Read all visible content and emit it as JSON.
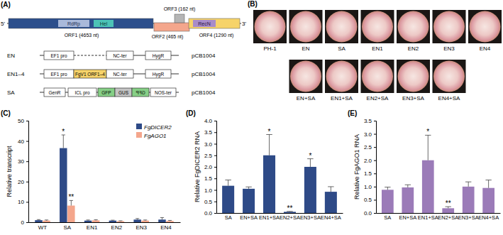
{
  "panel_labels": [
    "(A)",
    "(B)",
    "(C)",
    "(D)",
    "(E)"
  ],
  "diagram": {
    "genome": {
      "five_prime": "5'",
      "three_prime": "3'",
      "orfs": [
        "ORF1 (4653 nt)",
        "ORF2 (465 nt)",
        "ORF3 (162 nt)",
        "ORF4 (1290 nt)"
      ],
      "domains": [
        "RdRp",
        "Hel",
        "RecN"
      ]
    },
    "constructs": [
      {
        "name": "EN",
        "parts": [
          "EF1 pro",
          "NC-ter",
          "HygR"
        ],
        "vector": "pCB1004"
      },
      {
        "name": "EN1–4",
        "parts": [
          "EF1 pro",
          "FgV1 ORF1–4",
          "NC-ter",
          "HygR"
        ],
        "vector": "pCB1004"
      },
      {
        "name": "SA",
        "parts": [
          "GenR",
          "ICL pro",
          "GFP",
          "GUS",
          "GFP",
          "NOS-ter"
        ],
        "vector": "pCB1004"
      }
    ]
  },
  "photos": {
    "rows": [
      [
        "PH-1",
        "EN",
        "SA",
        "EN1",
        "EN2",
        "EN3",
        "EN4"
      ],
      [
        "EN+SA",
        "EN1+SA",
        "EN2+SA",
        "EN3+SA",
        "EN4+SA"
      ]
    ]
  },
  "chart_data": [
    {
      "type": "bar",
      "categories": [
        "WT",
        "SA",
        "EN1",
        "EN2",
        "EN3",
        "EN4"
      ],
      "ylabel": "Relative transcript",
      "ylim": [
        0,
        50
      ],
      "yticks": [
        0,
        10,
        20,
        30,
        40,
        50
      ],
      "legend": "upper right",
      "series": [
        {
          "name": "FgDICER2",
          "color": "#2e4a87",
          "values": [
            1.0,
            36.5,
            0.8,
            0.8,
            1.3,
            1.3
          ],
          "errors": [
            0.3,
            6.5,
            0.3,
            0.2,
            0.5,
            1.0
          ],
          "annotations": [
            null,
            "*",
            null,
            null,
            null,
            null
          ]
        },
        {
          "name": "FgAGO1",
          "color": "#f4a68c",
          "values": [
            0.8,
            8.2,
            0.9,
            0.5,
            0.8,
            0.6
          ],
          "errors": [
            0.3,
            2.5,
            0.3,
            0.2,
            0.3,
            0.3
          ],
          "annotations": [
            null,
            "**",
            null,
            null,
            null,
            null
          ]
        }
      ]
    },
    {
      "type": "bar",
      "categories": [
        "SA",
        "EN+SA",
        "EN1+SA",
        "EN2+SA",
        "EN3+SA",
        "EN4+SA"
      ],
      "ylabel": "Relative FgDICER2 RNA",
      "ylim": [
        0,
        4
      ],
      "yticks": [
        {
          "value": 0,
          "label": "0.0"
        },
        {
          "value": 0.5,
          "label": "0.5"
        },
        {
          "value": 1,
          "label": "1.0"
        },
        {
          "value": 1.5,
          "label": "1.5"
        },
        {
          "value": 2,
          "label": "2.0"
        },
        {
          "value": 2.5,
          "label": "2.5"
        },
        {
          "value": 3,
          "label": "3.0"
        },
        {
          "value": 3.5,
          "label": "3.5"
        },
        {
          "value": 4,
          "label": "4.0"
        }
      ],
      "color": "#2e4a87",
      "values": [
        1.18,
        1.05,
        2.5,
        0.05,
        2.0,
        0.92
      ],
      "errors": [
        0.25,
        0.08,
        0.9,
        0.02,
        0.35,
        0.22
      ],
      "annotations": [
        null,
        null,
        "*",
        "**",
        "*",
        null
      ]
    },
    {
      "type": "bar",
      "categories": [
        "SA",
        "EN+SA",
        "EN1+SA",
        "EN2+SA",
        "EN3+SA",
        "EN4+SA"
      ],
      "ylabel": "Relative FgAGO1 RNA",
      "ylim": [
        0,
        3.5
      ],
      "yticks": [
        {
          "value": 0,
          "label": "0.0"
        },
        {
          "value": 0.5,
          "label": "0.5"
        },
        {
          "value": 1,
          "label": "1.0"
        },
        {
          "value": 1.5,
          "label": "1.5"
        },
        {
          "value": 2,
          "label": "2.0"
        },
        {
          "value": 2.5,
          "label": "2.5"
        },
        {
          "value": 3,
          "label": "3.0"
        },
        {
          "value": 3.5,
          "label": "3.5"
        }
      ],
      "color": "#9b7bb8",
      "values": [
        0.88,
        0.97,
        2.0,
        0.18,
        1.0,
        0.95
      ],
      "errors": [
        0.1,
        0.1,
        0.95,
        0.06,
        0.18,
        0.3
      ],
      "annotations": [
        null,
        null,
        "*",
        "**",
        null,
        null
      ]
    }
  ]
}
